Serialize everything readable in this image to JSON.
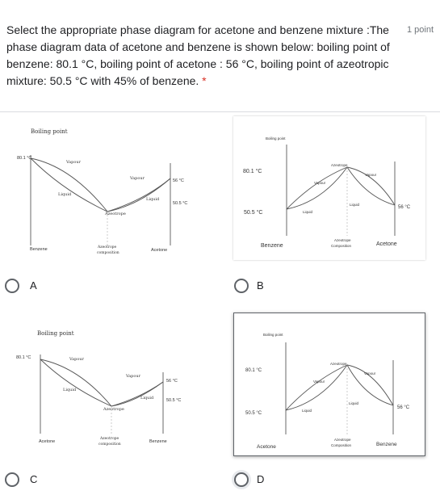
{
  "question": {
    "text": "Select the appropriate phase diagram for acetone and benzene mixture :The phase diagram data of acetone and benzene is shown below: boiling point of benzene: 80.1 °C, boiling point of acetone : 56 °C, boiling point of azeotropic mixture: 50.5 °C with 45% of benzene.",
    "required_marker": "*",
    "points": "1 point"
  },
  "options": [
    {
      "label": "A",
      "diagram": {
        "title": "Boiling point",
        "left_temp": "80.1 °C",
        "right_top_temp": "56 °C",
        "right_bottom_temp": "50.5 °C",
        "vapour_left": "Vapour",
        "vapour_right": "Vapour",
        "liquid_left": "Liquid",
        "liquid_right": "Liquid",
        "azeotrope": "Azeotrope",
        "left_axis": "Benzene",
        "middle_axis_1": "Azeotrope",
        "middle_axis_2": "composition",
        "right_axis": "Acetone"
      }
    },
    {
      "label": "B",
      "diagram": {
        "title": "Boiling point",
        "left_top_temp": "80.1 °C",
        "left_bottom_temp": "50.5 °C",
        "right_temp": "56 °C",
        "azeotrope": "Azeotrope",
        "vapour_left": "Vapour",
        "vapour_right": "Vapour",
        "liquid_left": "Liquid",
        "liquid_right": "Liquid",
        "left_axis": "Benzene",
        "middle_axis_1": "Azeotrope",
        "middle_axis_2": "Composition",
        "right_axis": "Acetone"
      }
    },
    {
      "label": "C",
      "diagram": {
        "title": "Boiling point",
        "left_temp": "80.1 °C",
        "right_top_temp": "56 °C",
        "right_bottom_temp": "50.5 °C",
        "vapour_left": "Vapour",
        "vapour_right": "Vapour",
        "liquid_left": "Liquid",
        "liquid_right": "Liquid",
        "azeotrope": "Azeotrope",
        "left_axis": "Acetone",
        "middle_axis_1": "Azeotrope",
        "middle_axis_2": "composition",
        "right_axis": "Benzene"
      }
    },
    {
      "label": "D",
      "diagram": {
        "title": "Boiling point",
        "left_top_temp": "80.1 °C",
        "left_bottom_temp": "50.5 °C",
        "right_temp": "56 °C",
        "azeotrope": "Azeotrope",
        "vapour_left": "Vapour",
        "vapour_right": "Vapour",
        "liquid_left": "Liquid",
        "liquid_right": "Liquid",
        "left_axis": "Acetone",
        "middle_axis_1": "Azeotrope",
        "middle_axis_2": "Composition",
        "right_axis": "Benzene"
      }
    }
  ]
}
